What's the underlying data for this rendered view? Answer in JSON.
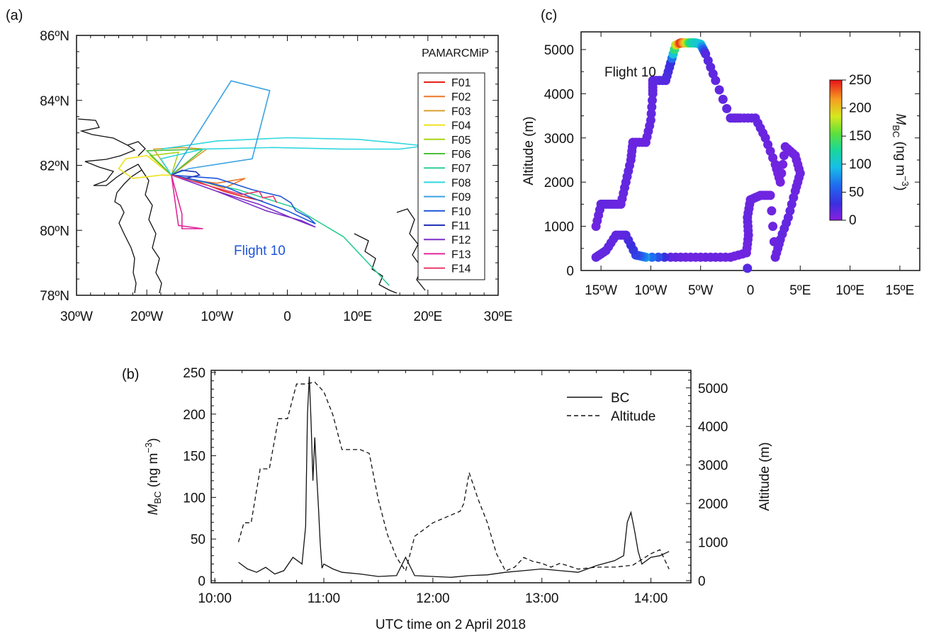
{
  "chart_data": [
    {
      "panel": "(a)",
      "type": "line",
      "title": "PAMARCMiP",
      "annotation": "Flight 10",
      "xlim": [
        -30,
        30
      ],
      "ylim": [
        78,
        86
      ],
      "x_ticks": [
        "30ºW",
        "20ºW",
        "10ºW",
        "0",
        "10ºE",
        "20ºE",
        "30ºE"
      ],
      "y_ticks": [
        "78ºN",
        "80ºN",
        "82ºN",
        "84ºN",
        "86ºN"
      ],
      "legend_position": "right",
      "series": [
        {
          "name": "F01",
          "color": "#e32119",
          "lon": [
            -14,
            -9,
            -6.5,
            -3.5
          ],
          "lat": [
            81.6,
            81.2,
            81.05,
            80.9
          ]
        },
        {
          "name": "F02",
          "color": "#ef7726",
          "lon": [
            -16.5,
            -12,
            -10,
            -6,
            -9,
            -12,
            -16.5
          ],
          "lat": [
            81.7,
            81.5,
            81.45,
            81.6,
            81.3,
            81.5,
            81.7
          ]
        },
        {
          "name": "F03",
          "color": "#d9a030",
          "lon": [
            -16.5,
            -19,
            -15,
            -11.5,
            -16.5
          ],
          "lat": [
            81.7,
            82.5,
            82.55,
            82.5,
            81.7
          ]
        },
        {
          "name": "F04",
          "color": "#f0e21c",
          "lon": [
            -16.5,
            -20,
            -23,
            -24,
            -22,
            -18,
            -16.5
          ],
          "lat": [
            81.7,
            82.3,
            82.2,
            81.9,
            81.6,
            81.7,
            81.7
          ]
        },
        {
          "name": "F05",
          "color": "#a8d41a",
          "lon": [
            -16.5,
            -19.5,
            -15.5,
            -16.5
          ],
          "lat": [
            81.7,
            82.3,
            82.4,
            81.7
          ]
        },
        {
          "name": "F06",
          "color": "#4cc13a",
          "lon": [
            -16.5,
            -20,
            -12,
            -16.5
          ],
          "lat": [
            81.7,
            82.45,
            82.5,
            81.7
          ]
        },
        {
          "name": "F07",
          "color": "#2ecf94",
          "lon": [
            -16.5,
            -7,
            1,
            8,
            14.5
          ],
          "lat": [
            81.7,
            81.25,
            80.7,
            79.8,
            78.3
          ]
        },
        {
          "name": "F08",
          "color": "#31d7df",
          "lon": [
            -18,
            -10,
            0,
            10,
            15,
            19.5,
            16,
            8,
            -2,
            -12,
            -18,
            -16.5
          ],
          "lat": [
            82.5,
            82.75,
            82.85,
            82.8,
            82.7,
            82.6,
            82.5,
            82.5,
            82.55,
            82.5,
            82.2,
            81.7
          ]
        },
        {
          "name": "F09",
          "color": "#3ba2e2",
          "lon": [
            -16.5,
            -8,
            -2.5,
            -5,
            -14,
            -16.5
          ],
          "lat": [
            81.7,
            84.6,
            84.3,
            82.2,
            81.9,
            81.7
          ]
        },
        {
          "name": "F10",
          "color": "#1e55d8",
          "lon": [
            -16.5,
            -12,
            -9,
            -5,
            0,
            4,
            3,
            1.2,
            0.5,
            -1,
            -5,
            -10,
            -16.5
          ],
          "lat": [
            81.7,
            81.5,
            81.35,
            81.0,
            80.6,
            80.2,
            80.4,
            80.6,
            80.85,
            81.05,
            81.25,
            81.6,
            81.7
          ]
        },
        {
          "name": "F11",
          "color": "#2234b8",
          "lon": [
            -16.5,
            -15,
            -13,
            -12.5,
            -14.5,
            -16.5
          ],
          "lat": [
            81.7,
            81.85,
            81.8,
            81.7,
            81.6,
            81.7
          ]
        },
        {
          "name": "F12",
          "color": "#7b2fc8",
          "lon": [
            -16.5,
            -10,
            -3,
            2,
            4,
            1,
            -4,
            -10,
            -16.5
          ],
          "lat": [
            81.7,
            81.2,
            80.6,
            80.3,
            80.1,
            80.35,
            80.8,
            81.2,
            81.7
          ]
        },
        {
          "name": "F13",
          "color": "#e0289a",
          "lon": [
            -16.5,
            -15,
            -15,
            -12,
            -15.5,
            -16.5
          ],
          "lat": [
            81.7,
            80.5,
            80.05,
            80.05,
            80.15,
            81.7
          ]
        },
        {
          "name": "F14",
          "color": "#e83a6a",
          "lon": [
            -16.5,
            -10,
            -6.5,
            -4,
            -3.5,
            -2,
            -1.5
          ],
          "lat": [
            81.7,
            81.3,
            81.1,
            81.2,
            81.0,
            81.05,
            80.85
          ]
        }
      ]
    },
    {
      "panel": "(b)",
      "type": "line",
      "xlabel": "UTC time on 2 April 2018",
      "ylabel_left": "M_BC (ng m^-3)",
      "ylabel_right": "Altitude (m)",
      "ylim_left": [
        0,
        250
      ],
      "ylim_right": [
        0,
        5400
      ],
      "x_ticks": [
        "10:00",
        "11:00",
        "12:00",
        "13:00",
        "14:00"
      ],
      "y_ticks_left": [
        "0",
        "50",
        "100",
        "150",
        "200",
        "250"
      ],
      "y_ticks_right": [
        "0",
        "1000",
        "2000",
        "3000",
        "4000",
        "5000"
      ],
      "legend_position": "top-right",
      "series": [
        {
          "name": "BC",
          "style": "solid",
          "time": [
            "10:13",
            "10:18",
            "10:23",
            "10:28",
            "10:33",
            "10:38",
            "10:43",
            "10:48",
            "10:50",
            "10:51",
            "10:52",
            "10:53",
            "10:54",
            "10:55",
            "10:56",
            "10:57",
            "10:58",
            "10:59",
            "11:00",
            "11:05",
            "11:10",
            "11:20",
            "11:30",
            "11:40",
            "11:45",
            "11:50",
            "12:00",
            "12:10",
            "12:20",
            "12:30",
            "12:40",
            "12:50",
            "13:00",
            "13:10",
            "13:20",
            "13:30",
            "13:40",
            "13:45",
            "13:47",
            "13:49",
            "13:51",
            "13:53",
            "13:55",
            "14:00",
            "14:05",
            "14:10"
          ],
          "values": [
            22,
            14,
            10,
            16,
            8,
            12,
            28,
            20,
            65,
            200,
            245,
            190,
            120,
            172,
            130,
            90,
            45,
            15,
            20,
            14,
            10,
            8,
            5,
            6,
            28,
            6,
            5,
            4,
            6,
            7,
            10,
            12,
            14,
            12,
            10,
            18,
            24,
            30,
            70,
            82,
            60,
            35,
            20,
            28,
            30,
            35
          ]
        },
        {
          "name": "Altitude",
          "style": "dashed",
          "time": [
            "10:13",
            "10:16",
            "10:20",
            "10:25",
            "10:30",
            "10:35",
            "10:40",
            "10:45",
            "10:50",
            "10:55",
            "11:00",
            "11:05",
            "11:10",
            "11:20",
            "11:25",
            "11:30",
            "11:35",
            "11:40",
            "11:45",
            "11:50",
            "12:00",
            "12:10",
            "12:15",
            "12:17",
            "12:20",
            "12:25",
            "12:30",
            "12:35",
            "12:40",
            "12:45",
            "12:50",
            "12:55",
            "13:00",
            "13:05",
            "13:10",
            "13:20",
            "13:30",
            "13:40",
            "13:50",
            "14:00",
            "14:05",
            "14:10"
          ],
          "values": [
            1000,
            1500,
            1500,
            2900,
            2900,
            4200,
            4200,
            5100,
            5100,
            5150,
            4900,
            4300,
            3400,
            3400,
            3300,
            2100,
            1200,
            600,
            250,
            1150,
            1500,
            1700,
            1800,
            2000,
            2800,
            2100,
            1500,
            700,
            250,
            350,
            600,
            500,
            450,
            350,
            450,
            300,
            350,
            350,
            400,
            700,
            800,
            300
          ]
        }
      ]
    },
    {
      "panel": "(c)",
      "type": "scatter",
      "title": "Flight 10",
      "xlabel": "",
      "ylabel": "Altitude (m)",
      "xlim": [
        -17,
        17
      ],
      "ylim": [
        0,
        5400
      ],
      "x_ticks": [
        "15ºW",
        "10ºW",
        "5ºW",
        "0",
        "5ºE",
        "10ºE",
        "15ºE"
      ],
      "y_ticks": [
        "0",
        "1000",
        "2000",
        "3000",
        "4000",
        "5000"
      ],
      "colorbar_label": "M_BC (ng m^-3)",
      "colorbar_ticks": [
        "0",
        "50",
        "100",
        "150",
        "200",
        "250"
      ],
      "colorbar_range": [
        0,
        250
      ],
      "points": [
        {
          "lon": -15.5,
          "alt": 1000,
          "bc": 10
        },
        {
          "lon": -15.0,
          "alt": 1500,
          "bc": 15
        },
        {
          "lon": -14.0,
          "alt": 1500,
          "bc": 14
        },
        {
          "lon": -13.0,
          "alt": 1500,
          "bc": 12
        },
        {
          "lon": -12.5,
          "alt": 2000,
          "bc": 15
        },
        {
          "lon": -12.0,
          "alt": 2500,
          "bc": 14
        },
        {
          "lon": -11.8,
          "alt": 2900,
          "bc": 12
        },
        {
          "lon": -10.5,
          "alt": 2900,
          "bc": 12
        },
        {
          "lon": -10.0,
          "alt": 3400,
          "bc": 15
        },
        {
          "lon": -9.8,
          "alt": 4000,
          "bc": 14
        },
        {
          "lon": -9.8,
          "alt": 4300,
          "bc": 16
        },
        {
          "lon": -8.5,
          "alt": 4300,
          "bc": 20
        },
        {
          "lon": -8.0,
          "alt": 4700,
          "bc": 30
        },
        {
          "lon": -7.5,
          "alt": 5100,
          "bc": 170
        },
        {
          "lon": -7.0,
          "alt": 5150,
          "bc": 245
        },
        {
          "lon": -6.5,
          "alt": 5150,
          "bc": 200
        },
        {
          "lon": -6.0,
          "alt": 5150,
          "bc": 130
        },
        {
          "lon": -5.5,
          "alt": 5150,
          "bc": 110
        },
        {
          "lon": -5.0,
          "alt": 5120,
          "bc": 100
        },
        {
          "lon": -4.5,
          "alt": 4900,
          "bc": 20
        },
        {
          "lon": -3.5,
          "alt": 4300,
          "bc": 15
        },
        {
          "lon": -2.0,
          "alt": 3450,
          "bc": 15
        },
        {
          "lon": -1.0,
          "alt": 3450,
          "bc": 12
        },
        {
          "lon": 0.5,
          "alt": 3450,
          "bc": 14
        },
        {
          "lon": 1.5,
          "alt": 3000,
          "bc": 12
        },
        {
          "lon": 2.5,
          "alt": 2400,
          "bc": 10
        },
        {
          "lon": 3.0,
          "alt": 2000,
          "bc": 8
        },
        {
          "lon": 3.5,
          "alt": 2800,
          "bc": 10
        },
        {
          "lon": 4.5,
          "alt": 2600,
          "bc": 9
        },
        {
          "lon": 5.0,
          "alt": 2200,
          "bc": 10
        },
        {
          "lon": 4.5,
          "alt": 1800,
          "bc": 12
        },
        {
          "lon": 3.8,
          "alt": 1200,
          "bc": 15
        },
        {
          "lon": 3.0,
          "alt": 700,
          "bc": 14
        },
        {
          "lon": 2.5,
          "alt": 300,
          "bc": 12
        },
        {
          "lon": 2.0,
          "alt": 1700,
          "bc": 10
        },
        {
          "lon": 1.0,
          "alt": 1700,
          "bc": 10
        },
        {
          "lon": 0.0,
          "alt": 1600,
          "bc": 12
        },
        {
          "lon": -0.3,
          "alt": 1200,
          "bc": 14
        },
        {
          "lon": -0.2,
          "alt": 800,
          "bc": 12
        },
        {
          "lon": -0.4,
          "alt": 400,
          "bc": 10
        },
        {
          "lon": -2.0,
          "alt": 300,
          "bc": 10
        },
        {
          "lon": -4.0,
          "alt": 300,
          "bc": 12
        },
        {
          "lon": -6.0,
          "alt": 300,
          "bc": 10
        },
        {
          "lon": -8.0,
          "alt": 300,
          "bc": 14
        },
        {
          "lon": -10.5,
          "alt": 300,
          "bc": 80
        },
        {
          "lon": -11.5,
          "alt": 350,
          "bc": 40
        },
        {
          "lon": -12.5,
          "alt": 800,
          "bc": 20
        },
        {
          "lon": -13.5,
          "alt": 800,
          "bc": 15
        },
        {
          "lon": -14.5,
          "alt": 450,
          "bc": 15
        },
        {
          "lon": -15.5,
          "alt": 300,
          "bc": 14
        },
        {
          "lon": -0.3,
          "alt": 50,
          "bc": 20
        }
      ]
    }
  ],
  "labels": {
    "panel_a": "(a)",
    "panel_b": "(b)",
    "panel_c": "(c)"
  }
}
